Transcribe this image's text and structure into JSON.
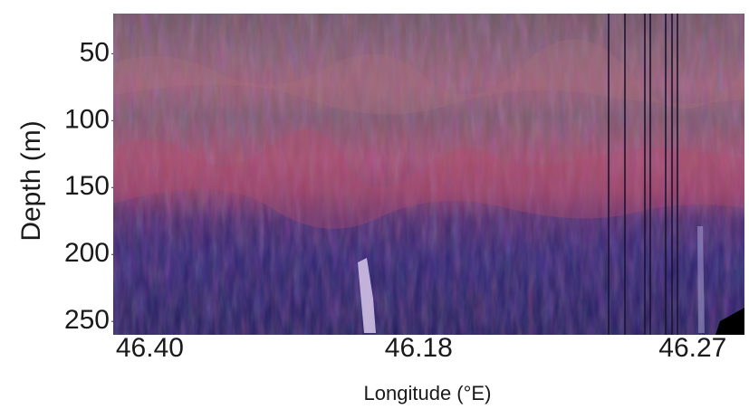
{
  "chart_data": {
    "type": "image",
    "x_label": "Longitude (°E)",
    "y_label": "Depth (m)",
    "categories": [
      "46.40",
      "46.18",
      "46.27"
    ],
    "ylim": [
      20,
      260
    ],
    "yticks": [
      50,
      100,
      150,
      200,
      250
    ],
    "inverted_y": true
  }
}
